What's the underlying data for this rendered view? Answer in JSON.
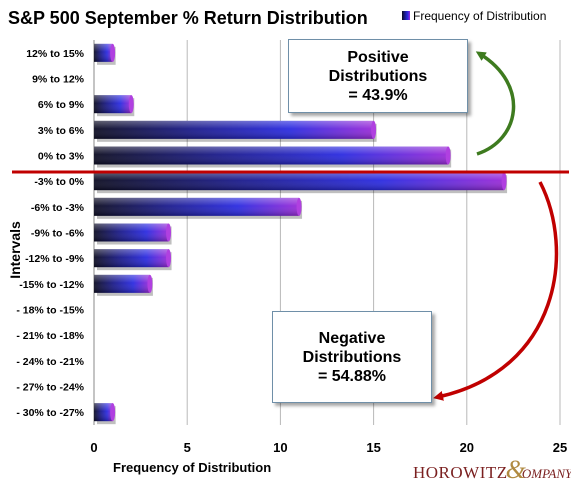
{
  "chart_data": {
    "type": "bar",
    "orientation": "horizontal",
    "title": "S&P 500 September  % Return Distribution",
    "xlabel": "Frequency of Distribution",
    "ylabel": "Intervals",
    "xlim": [
      0,
      25
    ],
    "x_ticks": [
      "0",
      "5",
      "10",
      "15",
      "20",
      "25"
    ],
    "grid": true,
    "legend": {
      "position": "top-right",
      "entries": [
        "Frequency of Distribution"
      ]
    },
    "categories": [
      "12% to 15%",
      "9% to 12%",
      "6% to 9%",
      "3% to 6%",
      "0% to 3%",
      "-3% to 0%",
      "-6% to -3%",
      "-9% to -6%",
      "-12% to -9%",
      "-15% to -12%",
      "- 18% to -15%",
      "- 21% to -18%",
      "- 24% to -21%",
      "- 27% to -24%",
      "- 30% to -27%"
    ],
    "values": [
      1,
      0,
      2,
      15,
      19,
      22,
      11,
      4,
      4,
      3,
      0,
      0,
      0,
      0,
      1
    ],
    "colors": {
      "bar_dark": "#10102a",
      "bar_mid": "#2020d8",
      "bar_end": "#9a2ad8",
      "divider": "#c00000",
      "arrow_up": "#3e7b1f",
      "arrow_down": "#c00000"
    }
  },
  "annotations": {
    "positive": {
      "line1": "Positive",
      "line2": "Distributions",
      "line3": "= 43.9%"
    },
    "negative": {
      "line1": "Negative",
      "line2": "Distributions",
      "line3": "= 54.88%"
    }
  },
  "logo": {
    "first": "HOROWITZ",
    "amp": "&",
    "second": "OMPANY"
  }
}
